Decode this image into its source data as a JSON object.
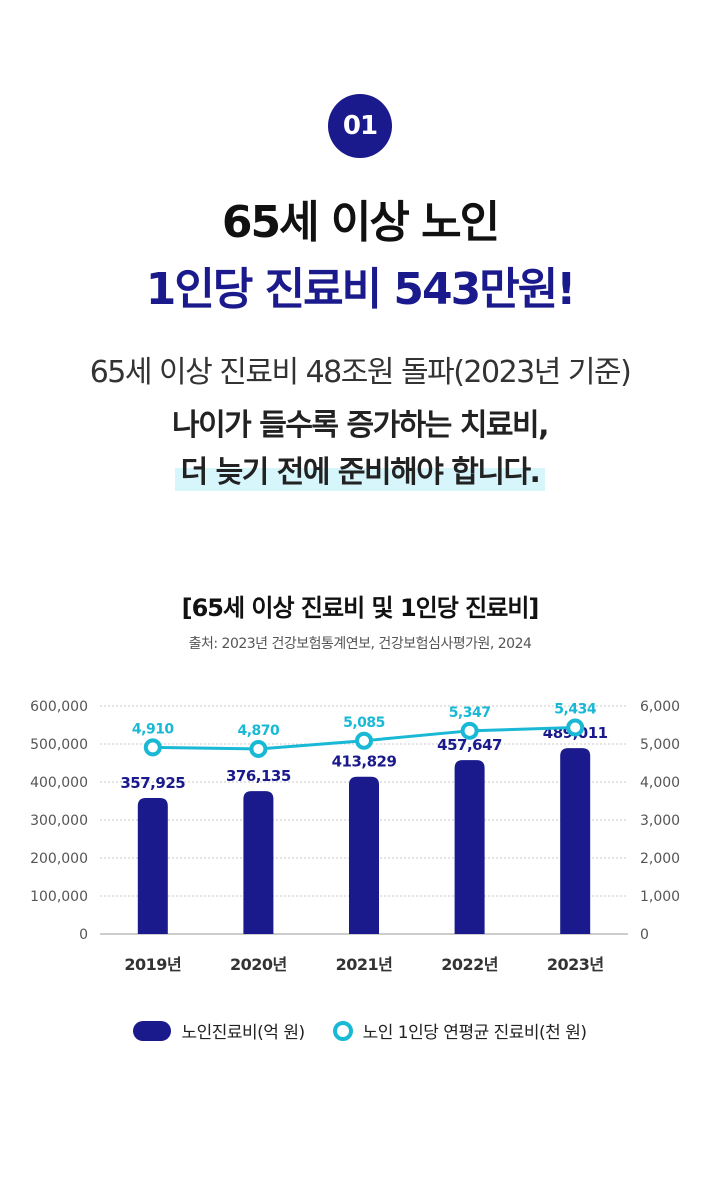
{
  "badge": "01",
  "headline": {
    "line1": "65세 이상 노인",
    "line2": "1인당 진료비 543만원!"
  },
  "subtext": {
    "line1": "65세 이상 진료비 48조원 돌파(2023년 기준)",
    "line2": "나이가 들수록 증가하는 치료비,",
    "line3": "더 늦기 전에 준비해야 합니다."
  },
  "colors": {
    "navy": "#1a1a8c",
    "cyan": "#19b9d6",
    "highlight": "#d6f6fb"
  },
  "chart_data": {
    "type": "bar",
    "title": "[65세 이상 진료비 및 1인당 진료비]",
    "source": "출처: 2023년 건강보험통계연보, 건강보험심사평가원, 2024",
    "categories": [
      "2019년",
      "2020년",
      "2021년",
      "2022년",
      "2023년"
    ],
    "series": [
      {
        "name": "노인진료비(억 원)",
        "type": "bar",
        "axis": "left",
        "values": [
          357925,
          376135,
          413829,
          457647,
          489011
        ],
        "labels": [
          "357,925",
          "376,135",
          "413,829",
          "457,647",
          "489,011"
        ]
      },
      {
        "name": "노인 1인당 연평균 진료비(천 원)",
        "type": "line",
        "axis": "right",
        "values": [
          4910,
          4870,
          5085,
          5347,
          5434
        ],
        "labels": [
          "4,910",
          "4,870",
          "5,085",
          "5,347",
          "5,434"
        ]
      }
    ],
    "y_left": {
      "range": [
        0,
        600000
      ],
      "ticks": [
        "0",
        "100,000",
        "200,000",
        "300,000",
        "400,000",
        "500,000",
        "600,000"
      ]
    },
    "y_right": {
      "range": [
        0,
        6000
      ],
      "ticks": [
        "0",
        "1,000",
        "2,000",
        "3,000",
        "4,000",
        "5,000",
        "6,000"
      ]
    },
    "grid": true,
    "legend": "bottom-center"
  }
}
